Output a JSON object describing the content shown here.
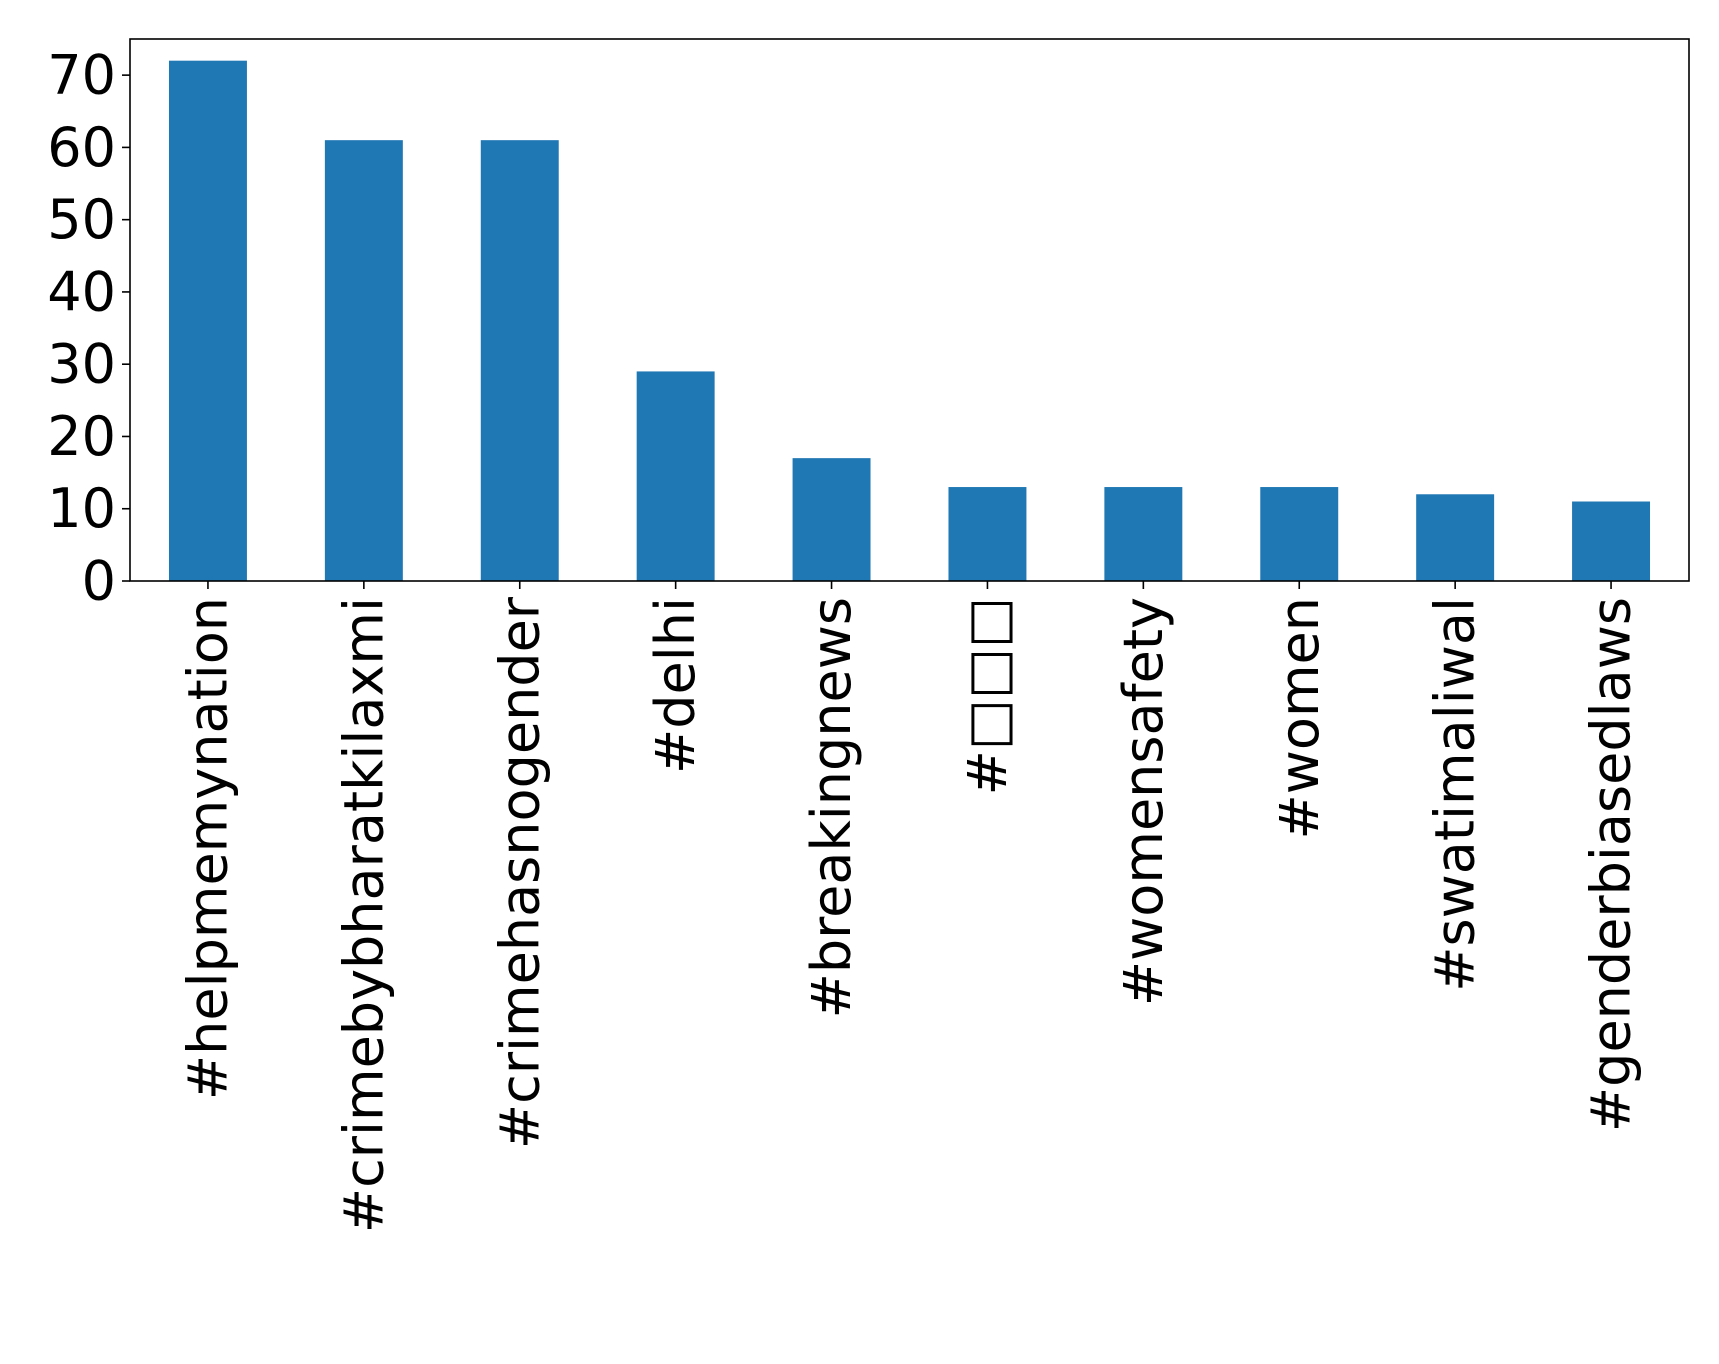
{
  "chart_data": {
    "type": "bar",
    "title": "",
    "xlabel": "",
    "ylabel": "",
    "categories": [
      "#helpmemynation",
      "#crimebybharatkilaxmi",
      "#crimehasnogender",
      "#delhi",
      "#breakingnews",
      "#□□□",
      "#womensafety",
      "#women",
      "#swatimaliwal",
      "#genderbiasedlaws"
    ],
    "values": [
      72,
      61,
      61,
      29,
      17,
      13,
      13,
      13,
      12,
      11
    ],
    "ylim": [
      0,
      75
    ],
    "yticks": [
      0,
      10,
      20,
      30,
      40,
      50,
      60,
      70
    ],
    "grid": false,
    "legend": "none",
    "bar_color": "#1f77b4"
  }
}
